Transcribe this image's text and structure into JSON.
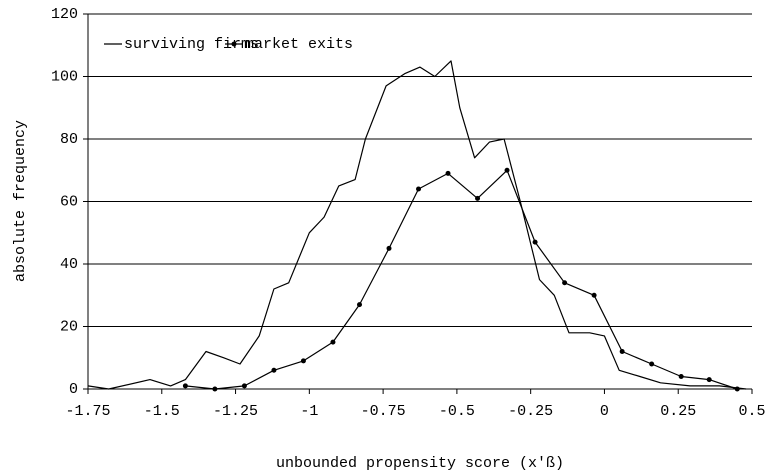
{
  "chart_data": {
    "type": "line",
    "xlabel": "unbounded propensity score (x'ß)",
    "ylabel": "absolute frequency",
    "xlim": [
      -1.75,
      0.5
    ],
    "xticks": [
      -1.75,
      -1.5,
      -1.25,
      -1,
      -0.75,
      -0.5,
      -0.25,
      0,
      0.25,
      0.5
    ],
    "ylim": [
      0,
      120
    ],
    "yticks": [
      0,
      20,
      40,
      60,
      80,
      100,
      120
    ],
    "grid": true,
    "legend": "upper left",
    "series": [
      {
        "name": "surviving firms",
        "color": "#000000",
        "marker": false,
        "x": [
          -1.75,
          -1.68,
          -1.54,
          -1.47,
          -1.42,
          -1.35,
          -1.29,
          -1.235,
          -1.17,
          -1.12,
          -1.07,
          -1.0,
          -0.95,
          -0.9,
          -0.845,
          -0.81,
          -0.74,
          -0.675,
          -0.625,
          -0.575,
          -0.52,
          -0.49,
          -0.44,
          -0.39,
          -0.34,
          -0.285,
          -0.22,
          -0.17,
          -0.12,
          -0.05,
          0.0,
          0.05,
          0.12,
          0.19,
          0.29,
          0.39,
          0.48
        ],
        "values": [
          1,
          0,
          3,
          1,
          3,
          12,
          10,
          8,
          17,
          32,
          34,
          50,
          55,
          65,
          67,
          80,
          97,
          101,
          103,
          100,
          105,
          90,
          74,
          79,
          80,
          60,
          35,
          30,
          18,
          18,
          17,
          6,
          4,
          2,
          1,
          1,
          0
        ]
      },
      {
        "name": "market exits",
        "color": "#000000",
        "marker": true,
        "x": [
          -1.42,
          -1.32,
          -1.22,
          -1.12,
          -1.02,
          -0.92,
          -0.83,
          -0.73,
          -0.63,
          -0.53,
          -0.43,
          -0.33,
          -0.235,
          -0.135,
          -0.035,
          0.06,
          0.16,
          0.26,
          0.355,
          0.45
        ],
        "values": [
          1,
          0,
          1,
          6,
          9,
          15,
          27,
          45,
          64,
          69,
          61,
          70,
          47,
          34,
          30,
          12,
          8,
          4,
          3,
          0
        ]
      }
    ]
  }
}
